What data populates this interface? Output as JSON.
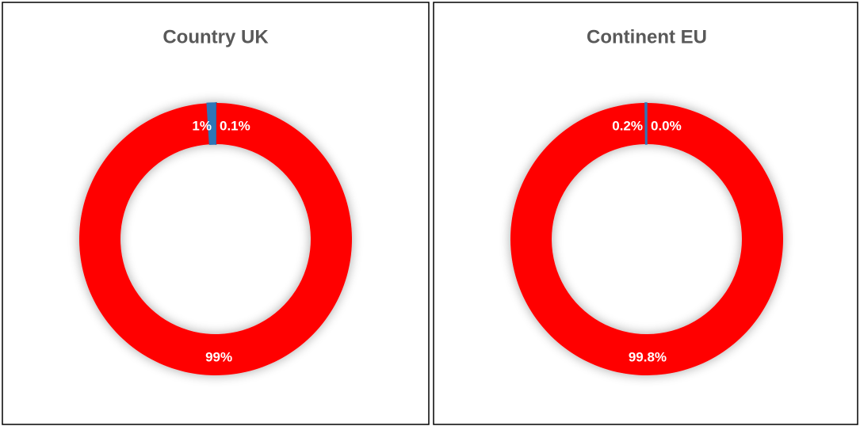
{
  "chart_data": [
    {
      "type": "donut",
      "title": "Country UK",
      "values": [
        0.1,
        99,
        1
      ],
      "value_labels": [
        "0.1%",
        "99%",
        "1%"
      ],
      "colors": [
        "#1f4e79",
        "#ff0000",
        "#2e75b6"
      ]
    },
    {
      "type": "donut",
      "title": "Continent EU",
      "values": [
        0,
        99.8,
        0.2
      ],
      "value_labels": [
        "0.0%",
        "99.8%",
        "0.2%"
      ],
      "colors": [
        "#1f4e79",
        "#ff0000",
        "#2e75b6"
      ]
    }
  ]
}
